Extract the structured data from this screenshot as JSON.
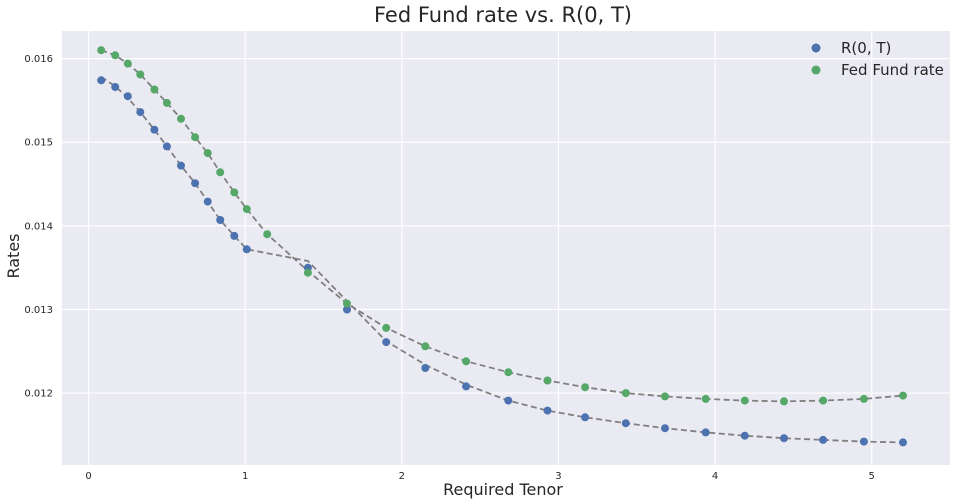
{
  "chart_data": {
    "type": "scatter",
    "title": "Fed Fund rate vs. R(0, T)",
    "xlabel": "Required Tenor",
    "ylabel": "Rates",
    "xlim": [
      -0.17,
      5.5
    ],
    "ylim": [
      0.01114,
      0.01633
    ],
    "xticks": [
      0,
      1,
      2,
      3,
      4,
      5
    ],
    "xtick_labels": [
      "0",
      "1",
      "2",
      "3",
      "4",
      "5"
    ],
    "yticks": [
      0.012,
      0.013,
      0.014,
      0.015,
      0.016
    ],
    "ytick_labels": [
      "0.012",
      "0.013",
      "0.014",
      "0.015",
      "0.016"
    ],
    "grid": true,
    "legend_position": "top-right",
    "background_color": "#eaeaf2",
    "grid_color": "#ffffff",
    "fit_line_color": "#808080",
    "series": [
      {
        "name": "R(0, T)",
        "color": "#4c72b0",
        "x": [
          0.08,
          0.17,
          0.25,
          0.33,
          0.42,
          0.5,
          0.59,
          0.68,
          0.76,
          0.84,
          0.93,
          1.01,
          1.4,
          1.65,
          1.9,
          2.15,
          2.41,
          2.68,
          2.93,
          3.17,
          3.43,
          3.68,
          3.94,
          4.19,
          4.44,
          4.69,
          4.95,
          5.2
        ],
        "values": [
          0.01574,
          0.01566,
          0.01555,
          0.01536,
          0.01515,
          0.01495,
          0.01472,
          0.01451,
          0.01429,
          0.01407,
          0.01388,
          0.01372,
          0.0135,
          0.013,
          0.01261,
          0.0123,
          0.01208,
          0.01191,
          0.01179,
          0.01171,
          0.01164,
          0.01158,
          0.01153,
          0.01149,
          0.01146,
          0.01144,
          0.01142,
          0.01141
        ],
        "fit": [
          0.01578,
          0.01567,
          0.01553,
          0.01536,
          0.01515,
          0.01495,
          0.01472,
          0.01451,
          0.01429,
          0.01407,
          0.01388,
          0.01372,
          0.01358,
          0.0131,
          0.01262,
          0.01234,
          0.0121,
          0.01191,
          0.01179,
          0.01171,
          0.01164,
          0.01158,
          0.01153,
          0.01149,
          0.01146,
          0.01144,
          0.01142,
          0.01141
        ]
      },
      {
        "name": "Fed Fund rate",
        "color": "#55a868",
        "x": [
          0.08,
          0.17,
          0.25,
          0.33,
          0.42,
          0.5,
          0.59,
          0.68,
          0.76,
          0.84,
          0.93,
          1.01,
          1.14,
          1.4,
          1.65,
          1.9,
          2.15,
          2.41,
          2.68,
          2.93,
          3.17,
          3.43,
          3.68,
          3.94,
          4.19,
          4.44,
          4.69,
          4.95,
          5.2
        ],
        "values": [
          0.0161,
          0.01604,
          0.01594,
          0.01581,
          0.01563,
          0.01547,
          0.01528,
          0.01506,
          0.01487,
          0.01464,
          0.0144,
          0.0142,
          0.0139,
          0.01344,
          0.01307,
          0.01278,
          0.01256,
          0.01238,
          0.01225,
          0.01215,
          0.01207,
          0.012,
          0.01196,
          0.01193,
          0.01191,
          0.0119,
          0.01191,
          0.01193,
          0.01197
        ],
        "fit": [
          0.0161,
          0.01604,
          0.01594,
          0.01581,
          0.01563,
          0.01547,
          0.01528,
          0.01506,
          0.01487,
          0.01464,
          0.0144,
          0.0142,
          0.0139,
          0.01346,
          0.01307,
          0.01278,
          0.01256,
          0.01238,
          0.01225,
          0.01215,
          0.01207,
          0.012,
          0.01196,
          0.01193,
          0.01191,
          0.0119,
          0.01191,
          0.01193,
          0.01197
        ]
      }
    ]
  }
}
